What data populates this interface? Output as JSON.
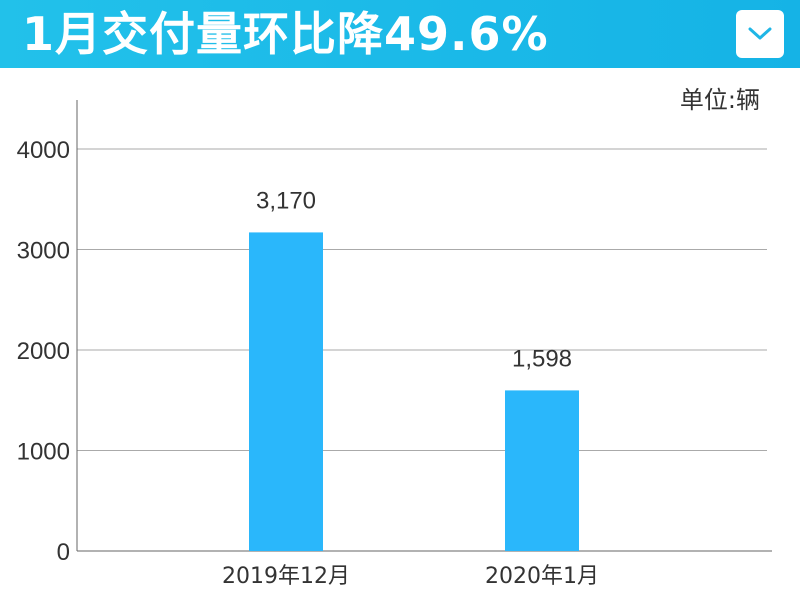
{
  "header": {
    "title": "1月交付量环比降49.6%",
    "dropdown_icon": "chevron-down-icon"
  },
  "unit_label": "单位:辆",
  "colors": {
    "header_bg": "#1fbfe9",
    "bar": "#2ab7fb",
    "grid": "#aaaaaa",
    "axis": "#666666"
  },
  "chart_data": {
    "type": "bar",
    "categories": [
      "2019年12月",
      "2020年1月"
    ],
    "values": [
      3170,
      1598
    ],
    "data_labels": [
      "3,170",
      "1,598"
    ],
    "yticks": [
      0,
      1000,
      2000,
      3000,
      4000
    ],
    "ylim": [
      0,
      4500
    ],
    "grid": true,
    "title": "",
    "xlabel": "",
    "ylabel": ""
  }
}
